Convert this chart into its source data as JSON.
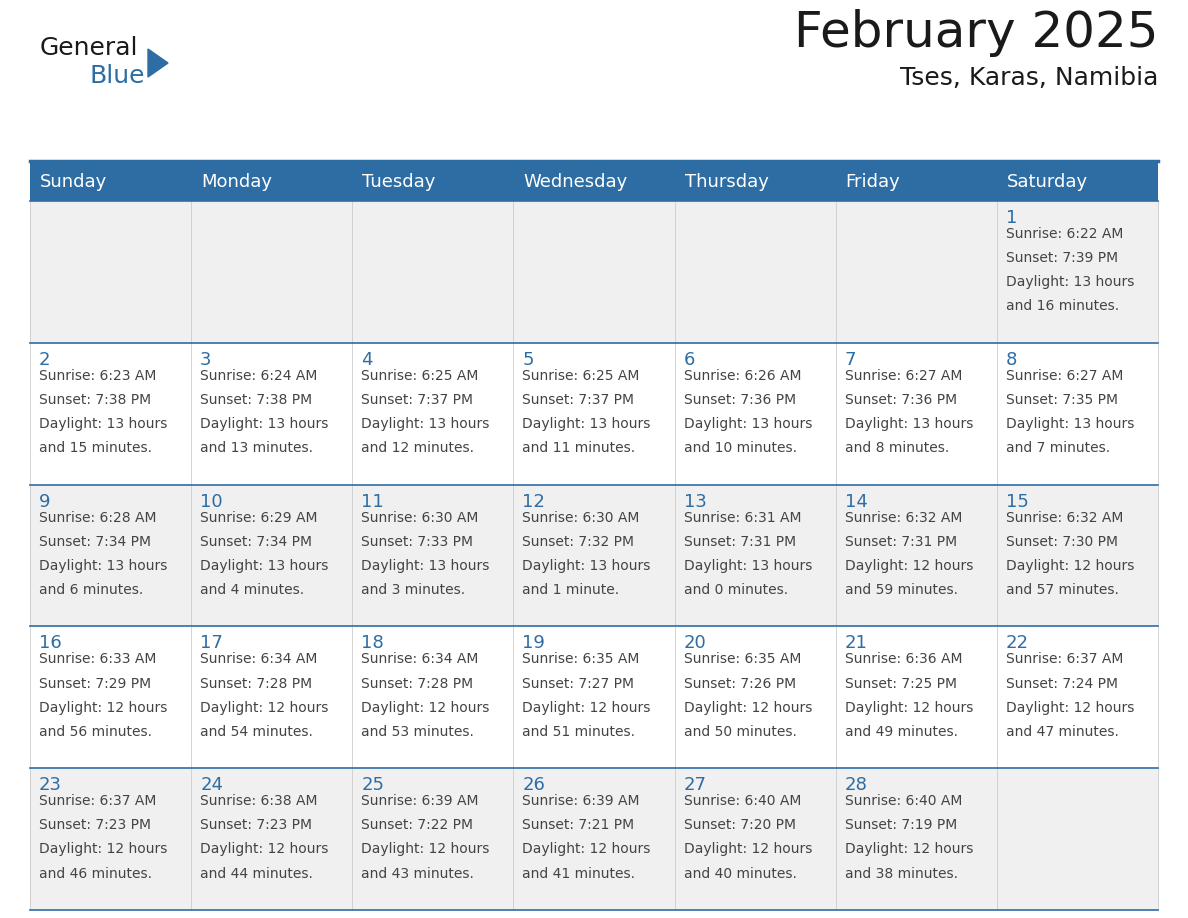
{
  "title": "February 2025",
  "subtitle": "Tses, Karas, Namibia",
  "header_bg": "#2E6DA4",
  "header_text_color": "#FFFFFF",
  "day_names": [
    "Sunday",
    "Monday",
    "Tuesday",
    "Wednesday",
    "Thursday",
    "Friday",
    "Saturday"
  ],
  "cell_bg_white": "#FFFFFF",
  "cell_bg_gray": "#F0F0F0",
  "cell_border_top_color": "#2E6DA4",
  "day_number_color": "#2E6DA4",
  "info_text_color": "#444444",
  "calendar_data": [
    [
      null,
      null,
      null,
      null,
      null,
      null,
      {
        "day": 1,
        "sunrise": "6:22 AM",
        "sunset": "7:39 PM",
        "daylight_hours": 13,
        "daylight_minutes": 16
      }
    ],
    [
      {
        "day": 2,
        "sunrise": "6:23 AM",
        "sunset": "7:38 PM",
        "daylight_hours": 13,
        "daylight_minutes": 15
      },
      {
        "day": 3,
        "sunrise": "6:24 AM",
        "sunset": "7:38 PM",
        "daylight_hours": 13,
        "daylight_minutes": 13
      },
      {
        "day": 4,
        "sunrise": "6:25 AM",
        "sunset": "7:37 PM",
        "daylight_hours": 13,
        "daylight_minutes": 12
      },
      {
        "day": 5,
        "sunrise": "6:25 AM",
        "sunset": "7:37 PM",
        "daylight_hours": 13,
        "daylight_minutes": 11
      },
      {
        "day": 6,
        "sunrise": "6:26 AM",
        "sunset": "7:36 PM",
        "daylight_hours": 13,
        "daylight_minutes": 10
      },
      {
        "day": 7,
        "sunrise": "6:27 AM",
        "sunset": "7:36 PM",
        "daylight_hours": 13,
        "daylight_minutes": 8
      },
      {
        "day": 8,
        "sunrise": "6:27 AM",
        "sunset": "7:35 PM",
        "daylight_hours": 13,
        "daylight_minutes": 7
      }
    ],
    [
      {
        "day": 9,
        "sunrise": "6:28 AM",
        "sunset": "7:34 PM",
        "daylight_hours": 13,
        "daylight_minutes": 6
      },
      {
        "day": 10,
        "sunrise": "6:29 AM",
        "sunset": "7:34 PM",
        "daylight_hours": 13,
        "daylight_minutes": 4
      },
      {
        "day": 11,
        "sunrise": "6:30 AM",
        "sunset": "7:33 PM",
        "daylight_hours": 13,
        "daylight_minutes": 3
      },
      {
        "day": 12,
        "sunrise": "6:30 AM",
        "sunset": "7:32 PM",
        "daylight_hours": 13,
        "daylight_minutes": 1
      },
      {
        "day": 13,
        "sunrise": "6:31 AM",
        "sunset": "7:31 PM",
        "daylight_hours": 13,
        "daylight_minutes": 0
      },
      {
        "day": 14,
        "sunrise": "6:32 AM",
        "sunset": "7:31 PM",
        "daylight_hours": 12,
        "daylight_minutes": 59
      },
      {
        "day": 15,
        "sunrise": "6:32 AM",
        "sunset": "7:30 PM",
        "daylight_hours": 12,
        "daylight_minutes": 57
      }
    ],
    [
      {
        "day": 16,
        "sunrise": "6:33 AM",
        "sunset": "7:29 PM",
        "daylight_hours": 12,
        "daylight_minutes": 56
      },
      {
        "day": 17,
        "sunrise": "6:34 AM",
        "sunset": "7:28 PM",
        "daylight_hours": 12,
        "daylight_minutes": 54
      },
      {
        "day": 18,
        "sunrise": "6:34 AM",
        "sunset": "7:28 PM",
        "daylight_hours": 12,
        "daylight_minutes": 53
      },
      {
        "day": 19,
        "sunrise": "6:35 AM",
        "sunset": "7:27 PM",
        "daylight_hours": 12,
        "daylight_minutes": 51
      },
      {
        "day": 20,
        "sunrise": "6:35 AM",
        "sunset": "7:26 PM",
        "daylight_hours": 12,
        "daylight_minutes": 50
      },
      {
        "day": 21,
        "sunrise": "6:36 AM",
        "sunset": "7:25 PM",
        "daylight_hours": 12,
        "daylight_minutes": 49
      },
      {
        "day": 22,
        "sunrise": "6:37 AM",
        "sunset": "7:24 PM",
        "daylight_hours": 12,
        "daylight_minutes": 47
      }
    ],
    [
      {
        "day": 23,
        "sunrise": "6:37 AM",
        "sunset": "7:23 PM",
        "daylight_hours": 12,
        "daylight_minutes": 46
      },
      {
        "day": 24,
        "sunrise": "6:38 AM",
        "sunset": "7:23 PM",
        "daylight_hours": 12,
        "daylight_minutes": 44
      },
      {
        "day": 25,
        "sunrise": "6:39 AM",
        "sunset": "7:22 PM",
        "daylight_hours": 12,
        "daylight_minutes": 43
      },
      {
        "day": 26,
        "sunrise": "6:39 AM",
        "sunset": "7:21 PM",
        "daylight_hours": 12,
        "daylight_minutes": 41
      },
      {
        "day": 27,
        "sunrise": "6:40 AM",
        "sunset": "7:20 PM",
        "daylight_hours": 12,
        "daylight_minutes": 40
      },
      {
        "day": 28,
        "sunrise": "6:40 AM",
        "sunset": "7:19 PM",
        "daylight_hours": 12,
        "daylight_minutes": 38
      },
      null
    ]
  ],
  "logo_text_general": "General",
  "logo_text_blue": "Blue",
  "title_fontsize": 36,
  "subtitle_fontsize": 18,
  "header_fontsize": 13,
  "day_num_fontsize": 13,
  "info_fontsize": 10
}
